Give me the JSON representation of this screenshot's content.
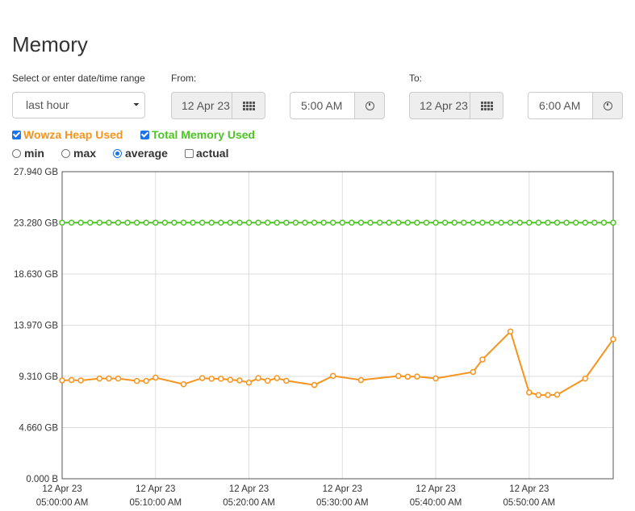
{
  "page": {
    "title": "Memory"
  },
  "range": {
    "label": "Select or enter date/time range",
    "selected": "last hour",
    "from_label": "From:",
    "from_date": "12 Apr 23",
    "from_time": "5:00 AM",
    "to_label": "To:",
    "to_date": "12 Apr 23",
    "to_time": "6:00 AM"
  },
  "series_toggles": [
    {
      "label": "Wowza Heap Used",
      "checked": true,
      "color": "#f7941d"
    },
    {
      "label": "Total Memory Used",
      "checked": true,
      "color": "#4cc524"
    }
  ],
  "modes": [
    {
      "label": "min",
      "checked": false
    },
    {
      "label": "max",
      "checked": false
    },
    {
      "label": "average",
      "checked": true
    },
    {
      "label": "actual",
      "checked": false,
      "kind": "checkbox"
    }
  ],
  "chart_data": {
    "type": "line",
    "ylabels": [
      "27.940 GB",
      "23.280 GB",
      "18.630 GB",
      "13.970 GB",
      "9.310 GB",
      "4.660 GB",
      "0.000 B"
    ],
    "ylim": [
      0,
      27.94
    ],
    "xlim": [
      0,
      59
    ],
    "xticks": [
      {
        "minute": 0,
        "date": "12 Apr 23",
        "time": "05:00:00 AM"
      },
      {
        "minute": 10,
        "date": "12 Apr 23",
        "time": "05:10:00 AM"
      },
      {
        "minute": 20,
        "date": "12 Apr 23",
        "time": "05:20:00 AM"
      },
      {
        "minute": 30,
        "date": "12 Apr 23",
        "time": "05:30:00 AM"
      },
      {
        "minute": 40,
        "date": "12 Apr 23",
        "time": "05:40:00 AM"
      },
      {
        "minute": 50,
        "date": "12 Apr 23",
        "time": "05:50:00 AM"
      }
    ],
    "grid": true,
    "series": [
      {
        "name": "Total Memory Used",
        "color": "#4cc524",
        "points": [
          [
            0,
            23.3
          ],
          [
            1,
            23.3
          ],
          [
            2,
            23.3
          ],
          [
            3,
            23.3
          ],
          [
            4,
            23.3
          ],
          [
            5,
            23.3
          ],
          [
            6,
            23.3
          ],
          [
            7,
            23.3
          ],
          [
            8,
            23.3
          ],
          [
            9,
            23.3
          ],
          [
            10,
            23.3
          ],
          [
            11,
            23.3
          ],
          [
            12,
            23.3
          ],
          [
            13,
            23.3
          ],
          [
            14,
            23.3
          ],
          [
            15,
            23.3
          ],
          [
            16,
            23.3
          ],
          [
            17,
            23.3
          ],
          [
            18,
            23.3
          ],
          [
            19,
            23.3
          ],
          [
            20,
            23.3
          ],
          [
            21,
            23.3
          ],
          [
            22,
            23.3
          ],
          [
            23,
            23.3
          ],
          [
            24,
            23.3
          ],
          [
            25,
            23.3
          ],
          [
            26,
            23.3
          ],
          [
            27,
            23.3
          ],
          [
            28,
            23.3
          ],
          [
            29,
            23.3
          ],
          [
            30,
            23.3
          ],
          [
            31,
            23.3
          ],
          [
            32,
            23.3
          ],
          [
            33,
            23.3
          ],
          [
            34,
            23.3
          ],
          [
            35,
            23.3
          ],
          [
            36,
            23.3
          ],
          [
            37,
            23.3
          ],
          [
            38,
            23.3
          ],
          [
            39,
            23.3
          ],
          [
            40,
            23.3
          ],
          [
            41,
            23.3
          ],
          [
            42,
            23.3
          ],
          [
            43,
            23.3
          ],
          [
            44,
            23.3
          ],
          [
            45,
            23.3
          ],
          [
            46,
            23.3
          ],
          [
            47,
            23.3
          ],
          [
            48,
            23.3
          ],
          [
            49,
            23.3
          ],
          [
            50,
            23.3
          ],
          [
            51,
            23.3
          ],
          [
            52,
            23.3
          ],
          [
            53,
            23.3
          ],
          [
            54,
            23.3
          ],
          [
            55,
            23.3
          ],
          [
            56,
            23.3
          ],
          [
            57,
            23.3
          ],
          [
            58,
            23.3
          ],
          [
            59,
            23.3
          ]
        ]
      },
      {
        "name": "Wowza Heap Used",
        "color": "#f7941d",
        "points": [
          [
            0,
            8.95
          ],
          [
            1,
            8.98
          ],
          [
            2,
            8.95
          ],
          [
            4,
            9.12
          ],
          [
            5,
            9.12
          ],
          [
            6,
            9.12
          ],
          [
            8,
            8.9
          ],
          [
            9,
            8.9
          ],
          [
            10,
            9.2
          ],
          [
            13,
            8.6
          ],
          [
            15,
            9.16
          ],
          [
            16,
            9.1
          ],
          [
            17,
            9.1
          ],
          [
            18,
            9.0
          ],
          [
            19,
            8.95
          ],
          [
            20,
            8.75
          ],
          [
            21,
            9.16
          ],
          [
            22,
            8.92
          ],
          [
            23,
            9.16
          ],
          [
            24,
            8.92
          ],
          [
            27,
            8.53
          ],
          [
            29,
            9.36
          ],
          [
            32,
            8.98
          ],
          [
            36,
            9.35
          ],
          [
            37,
            9.29
          ],
          [
            38,
            9.3
          ],
          [
            40,
            9.13
          ],
          [
            44,
            9.72
          ],
          [
            45,
            10.85
          ],
          [
            48,
            13.4
          ],
          [
            50,
            7.85
          ],
          [
            51,
            7.62
          ],
          [
            52,
            7.62
          ],
          [
            53,
            7.65
          ],
          [
            56,
            9.12
          ],
          [
            59,
            12.7
          ]
        ]
      }
    ]
  }
}
